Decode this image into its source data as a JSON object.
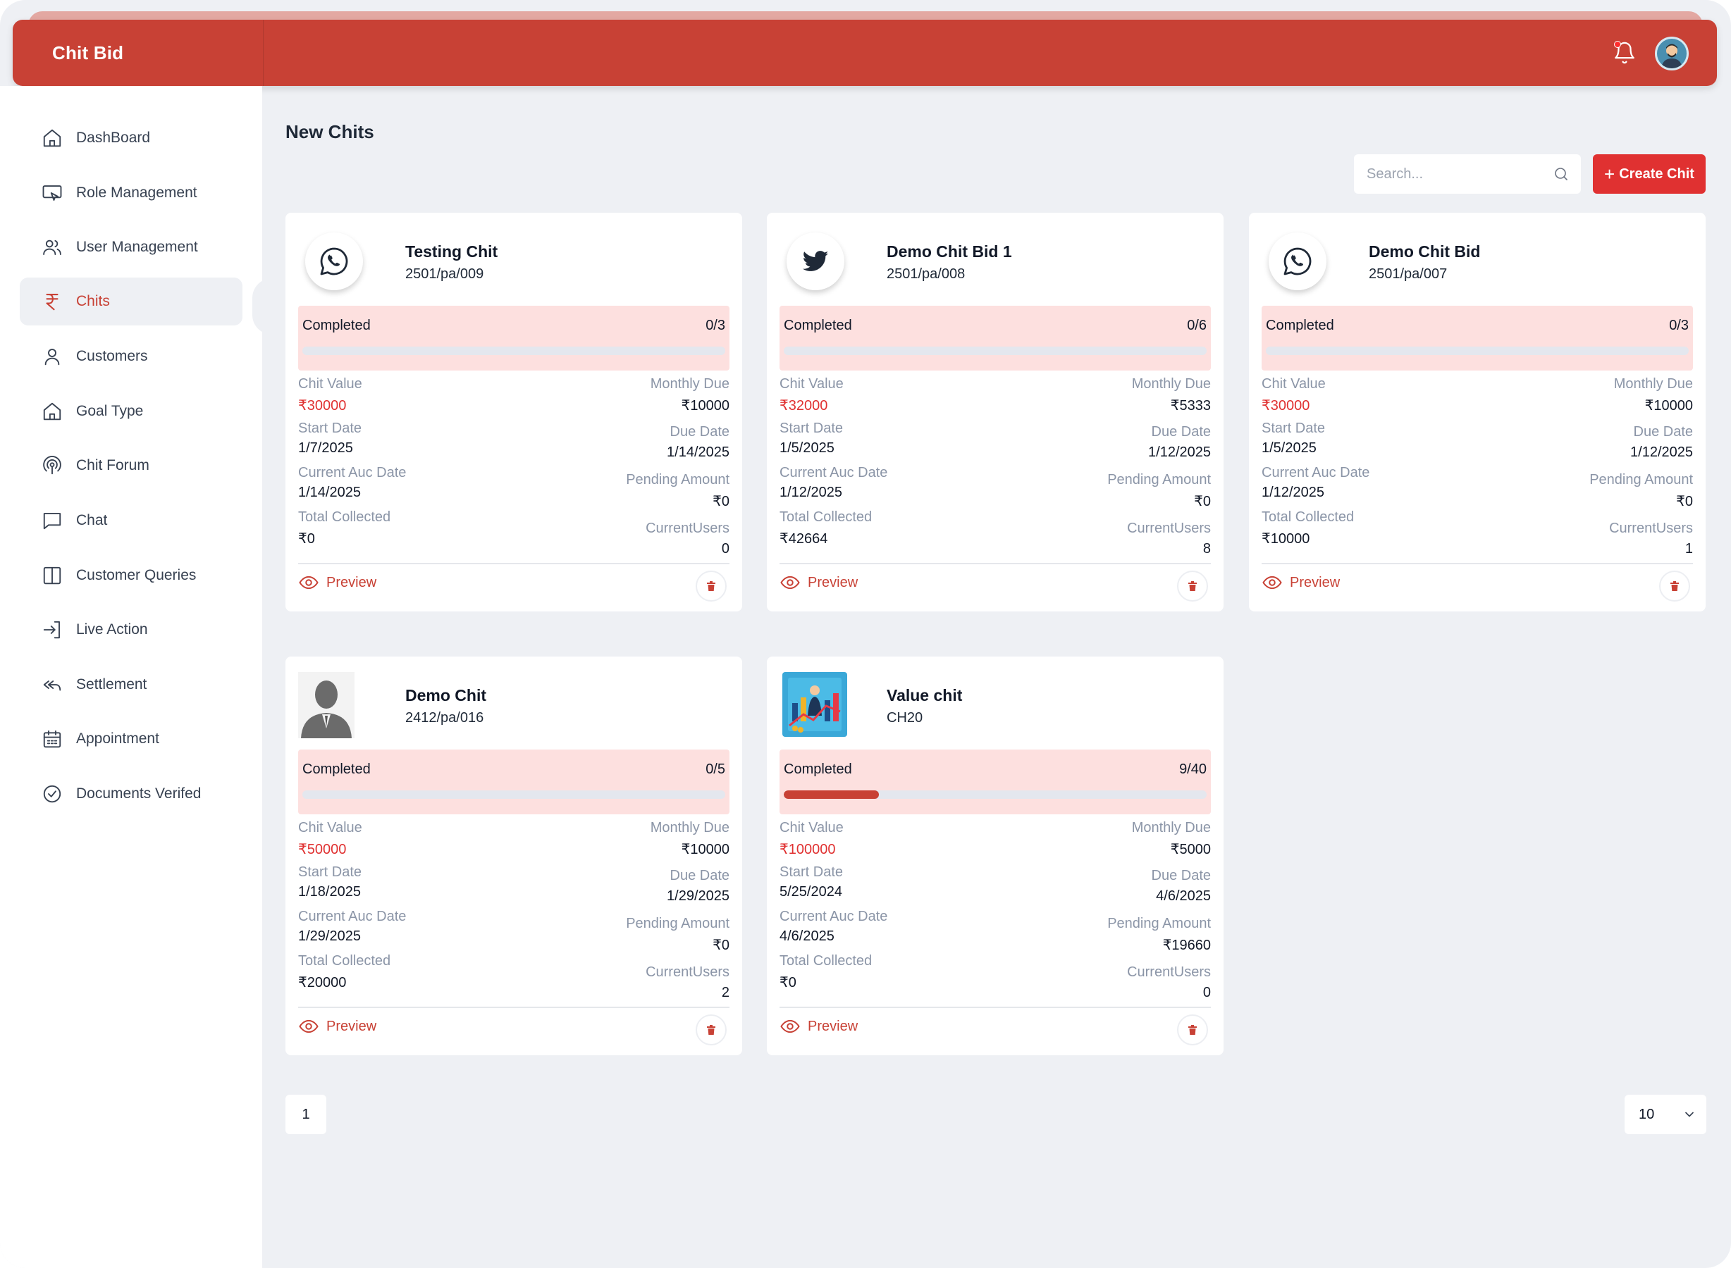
{
  "app": {
    "title": "Chit Bid"
  },
  "sidebar": {
    "items": [
      {
        "label": "DashBoard",
        "icon": "home-icon"
      },
      {
        "label": "Role Management",
        "icon": "monitor-cursor-icon"
      },
      {
        "label": "User Management",
        "icon": "users-icon"
      },
      {
        "label": "Chits",
        "icon": "rupee-icon",
        "active": true
      },
      {
        "label": "Customers",
        "icon": "user-icon"
      },
      {
        "label": "Goal Type",
        "icon": "home-icon"
      },
      {
        "label": "Chit Forum",
        "icon": "podcast-icon"
      },
      {
        "label": "Chat",
        "icon": "chat-icon"
      },
      {
        "label": "Customer Queries",
        "icon": "columns-icon"
      },
      {
        "label": "Live Action",
        "icon": "sign-in-icon"
      },
      {
        "label": "Settlement",
        "icon": "reply-all-icon"
      },
      {
        "label": "Appointment",
        "icon": "calendar-icon"
      },
      {
        "label": "Documents Verifed",
        "icon": "check-circle-icon"
      }
    ]
  },
  "main": {
    "title": "New Chits",
    "search_placeholder": "Search...",
    "create_label": "Create Chit"
  },
  "labels": {
    "chit_value": "Chit Value",
    "monthly_due": "Monthly Due",
    "start_date": "Start Date",
    "due_date": "Due Date",
    "current_auc_date": "Current Auc Date",
    "pending_amount": "Pending Amount",
    "total_collected": "Total Collected",
    "current_users": "CurrentUsers",
    "preview": "Preview"
  },
  "cards": [
    {
      "name": "Testing Chit",
      "code": "2501/pa/009",
      "logo": "whatsapp-icon",
      "status": "Completed",
      "progress_text": "0/3",
      "progress": 0,
      "chit_value": "₹30000",
      "monthly_due": "₹10000",
      "start_date": "1/7/2025",
      "due_date": "1/14/2025",
      "current_auc_date": "1/14/2025",
      "pending_amount": "₹0",
      "total_collected": "₹0",
      "current_users": "0"
    },
    {
      "name": "Demo Chit Bid 1",
      "code": "2501/pa/008",
      "logo": "twitter-icon",
      "status": "Completed",
      "progress_text": "0/6",
      "progress": 0,
      "chit_value": "₹32000",
      "monthly_due": "₹5333",
      "start_date": "1/5/2025",
      "due_date": "1/12/2025",
      "current_auc_date": "1/12/2025",
      "pending_amount": "₹0",
      "total_collected": "₹42664",
      "current_users": "8"
    },
    {
      "name": "Demo Chit Bid",
      "code": "2501/pa/007",
      "logo": "whatsapp-icon",
      "status": "Completed",
      "progress_text": "0/3",
      "progress": 0,
      "chit_value": "₹30000",
      "monthly_due": "₹10000",
      "start_date": "1/5/2025",
      "due_date": "1/12/2025",
      "current_auc_date": "1/12/2025",
      "pending_amount": "₹0",
      "total_collected": "₹10000",
      "current_users": "1"
    },
    {
      "name": "Demo Chit",
      "code": "2412/pa/016",
      "logo": "person-silhouette-icon",
      "status": "Completed",
      "progress_text": "0/5",
      "progress": 0,
      "chit_value": "₹50000",
      "monthly_due": "₹10000",
      "start_date": "1/18/2025",
      "due_date": "1/29/2025",
      "current_auc_date": "1/29/2025",
      "pending_amount": "₹0",
      "total_collected": "₹20000",
      "current_users": "2"
    },
    {
      "name": "Value chit",
      "code": "CH20",
      "logo": "business-illustration-icon",
      "status": "Completed",
      "progress_text": "9/40",
      "progress": 0.225,
      "chit_value": "₹100000",
      "monthly_due": "₹5000",
      "start_date": "5/25/2024",
      "due_date": "4/6/2025",
      "current_auc_date": "4/6/2025",
      "pending_amount": "₹19660",
      "total_collected": "₹0",
      "current_users": "0"
    }
  ],
  "pagination": {
    "page": "1",
    "page_size": "10"
  },
  "colors": {
    "brand": "#c84135",
    "accent_red": "#e03131",
    "status_bg": "#fde0df"
  }
}
